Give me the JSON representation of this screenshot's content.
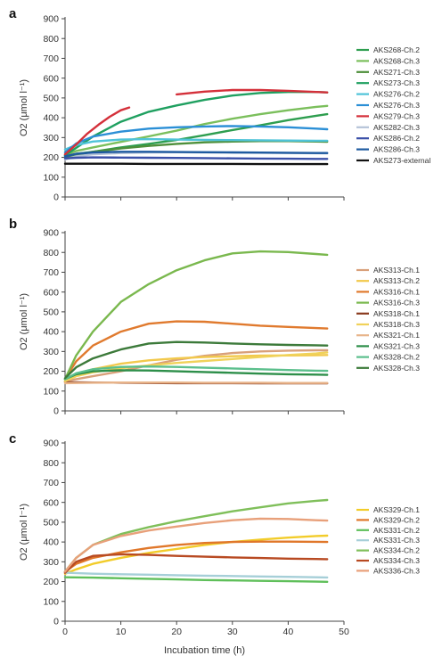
{
  "chart_data": [
    {
      "type": "line",
      "panel_label": "a",
      "ylabel": "O2 (μmol l⁻¹)",
      "xlabel": "",
      "xlim": [
        0,
        50
      ],
      "ylim": [
        0,
        900
      ],
      "yticks": [
        0,
        100,
        200,
        300,
        400,
        500,
        600,
        700,
        800,
        900
      ],
      "xticks": [],
      "legend_position": "right",
      "grid": false,
      "series": [
        {
          "name": "AKS268-Ch.2",
          "color": "#2e9e4f",
          "x": [
            0,
            2,
            5,
            10,
            15,
            20,
            25,
            30,
            35,
            40,
            45,
            47
          ],
          "y": [
            200,
            218,
            228,
            250,
            268,
            288,
            312,
            338,
            362,
            388,
            410,
            418
          ]
        },
        {
          "name": "AKS268-Ch.3",
          "color": "#7bbf5c",
          "x": [
            0,
            2,
            5,
            10,
            15,
            20,
            25,
            30,
            35,
            40,
            45,
            47
          ],
          "y": [
            210,
            232,
            250,
            278,
            306,
            335,
            368,
            395,
            418,
            438,
            455,
            460
          ]
        },
        {
          "name": "AKS271-Ch.3",
          "color": "#4e8f3a",
          "x": [
            0,
            2,
            5,
            10,
            15,
            20,
            25,
            30,
            35,
            40,
            45,
            47
          ],
          "y": [
            200,
            212,
            228,
            245,
            258,
            268,
            276,
            280,
            282,
            282,
            280,
            279
          ]
        },
        {
          "name": "AKS273-Ch.3",
          "color": "#1fa060",
          "x": [
            0,
            2,
            5,
            10,
            15,
            20,
            25,
            30,
            35,
            40,
            45,
            47
          ],
          "y": [
            210,
            248,
            305,
            380,
            430,
            462,
            490,
            512,
            525,
            530,
            530,
            528
          ]
        },
        {
          "name": "AKS276-Ch.2",
          "color": "#4fc3d8",
          "x": [
            0,
            2,
            5,
            10,
            15,
            20,
            25,
            30,
            35,
            40,
            45,
            47
          ],
          "y": [
            240,
            262,
            280,
            290,
            292,
            290,
            288,
            287,
            286,
            285,
            284,
            284
          ]
        },
        {
          "name": "AKS276-Ch.3",
          "color": "#2b8fd6",
          "x": [
            0,
            2,
            5,
            10,
            15,
            20,
            25,
            30,
            35,
            40,
            45,
            47
          ],
          "y": [
            225,
            270,
            305,
            330,
            345,
            352,
            356,
            358,
            356,
            352,
            345,
            342
          ]
        },
        {
          "name": "AKS279-Ch.3",
          "color": "#d4303a",
          "x": [
            0,
            2,
            4,
            6,
            8,
            10,
            11.5,
            20,
            25,
            30,
            35,
            40,
            45,
            47
          ],
          "y": [
            215,
            265,
            320,
            365,
            405,
            438,
            452,
            518,
            532,
            540,
            540,
            536,
            530,
            528
          ]
        },
        {
          "name": "AKS282-Ch.3",
          "color": "#b5c3d8",
          "x": [
            0,
            2,
            5,
            10,
            15,
            20,
            25,
            30,
            35,
            40,
            45,
            47
          ],
          "y": [
            190,
            205,
            215,
            222,
            225,
            226,
            225,
            224,
            223,
            222,
            221,
            220
          ]
        },
        {
          "name": "AKS286-Ch.2",
          "color": "#3a4fa8",
          "x": [
            0,
            2,
            5,
            10,
            15,
            20,
            25,
            30,
            35,
            40,
            45,
            47
          ],
          "y": [
            195,
            198,
            200,
            199,
            198,
            197,
            196,
            195,
            194,
            193,
            192,
            192
          ]
        },
        {
          "name": "AKS286-Ch.3",
          "color": "#1e5aa0",
          "x": [
            0,
            2,
            5,
            10,
            15,
            20,
            25,
            30,
            35,
            40,
            45,
            47
          ],
          "y": [
            205,
            218,
            225,
            228,
            228,
            227,
            226,
            225,
            224,
            223,
            222,
            222
          ]
        },
        {
          "name": "AKS273-external",
          "color": "#111111",
          "x": [
            0,
            5,
            10,
            15,
            20,
            25,
            30,
            35,
            40,
            45,
            47
          ],
          "y": [
            168,
            168,
            168,
            167,
            167,
            167,
            167,
            166,
            166,
            166,
            166
          ]
        }
      ]
    },
    {
      "type": "line",
      "panel_label": "b",
      "ylabel": "O2 (μmol l⁻¹)",
      "xlabel": "",
      "xlim": [
        0,
        50
      ],
      "ylim": [
        0,
        900
      ],
      "yticks": [
        0,
        100,
        200,
        300,
        400,
        500,
        600,
        700,
        800,
        900
      ],
      "xticks": [],
      "legend_position": "right",
      "grid": false,
      "series": [
        {
          "name": "AKS313-Ch.1",
          "color": "#d9a07a",
          "x": [
            0,
            2,
            5,
            10,
            15,
            20,
            25,
            30,
            35,
            40,
            45,
            47
          ],
          "y": [
            150,
            160,
            175,
            200,
            230,
            258,
            278,
            292,
            300,
            304,
            306,
            306
          ]
        },
        {
          "name": "AKS313-Ch.2",
          "color": "#f2c94c",
          "x": [
            0,
            2,
            5,
            10,
            15,
            20,
            25,
            30,
            35,
            40,
            45,
            47
          ],
          "y": [
            150,
            180,
            210,
            238,
            255,
            265,
            272,
            276,
            279,
            280,
            281,
            282
          ]
        },
        {
          "name": "AKS316-Ch.1",
          "color": "#e07a2e",
          "x": [
            0,
            2,
            5,
            10,
            15,
            20,
            25,
            30,
            35,
            40,
            45,
            47
          ],
          "y": [
            160,
            250,
            330,
            400,
            440,
            452,
            450,
            440,
            430,
            424,
            418,
            416
          ]
        },
        {
          "name": "AKS316-Ch.3",
          "color": "#7ab84e",
          "x": [
            0,
            2,
            5,
            10,
            15,
            20,
            25,
            30,
            35,
            40,
            45,
            47
          ],
          "y": [
            160,
            280,
            400,
            550,
            640,
            710,
            760,
            795,
            805,
            802,
            792,
            788
          ]
        },
        {
          "name": "AKS318-Ch.1",
          "color": "#8a3a1e",
          "x": [
            0,
            5,
            10,
            15,
            20,
            25,
            30,
            35,
            40,
            45,
            47
          ],
          "y": [
            145,
            143,
            142,
            141,
            140,
            140,
            140,
            139,
            139,
            139,
            139
          ]
        },
        {
          "name": "AKS318-Ch.3",
          "color": "#f0d25a",
          "x": [
            0,
            2,
            5,
            10,
            15,
            20,
            25,
            30,
            35,
            40,
            45,
            47
          ],
          "y": [
            150,
            175,
            195,
            215,
            230,
            242,
            252,
            262,
            272,
            282,
            290,
            295
          ]
        },
        {
          "name": "AKS321-Ch.1",
          "color": "#e8b48a",
          "x": [
            0,
            5,
            10,
            15,
            20,
            25,
            30,
            35,
            40,
            45,
            47
          ],
          "y": [
            140,
            142,
            143,
            143,
            143,
            142,
            142,
            142,
            141,
            141,
            141
          ]
        },
        {
          "name": "AKS321-Ch.3",
          "color": "#2e8f4a",
          "x": [
            0,
            2,
            5,
            10,
            15,
            20,
            25,
            30,
            35,
            40,
            45,
            47
          ],
          "y": [
            160,
            185,
            200,
            205,
            204,
            200,
            196,
            192,
            188,
            185,
            183,
            182
          ]
        },
        {
          "name": "AKS328-Ch.2",
          "color": "#5bbf8c",
          "x": [
            0,
            2,
            5,
            10,
            15,
            20,
            25,
            30,
            35,
            40,
            45,
            47
          ],
          "y": [
            160,
            190,
            210,
            222,
            224,
            222,
            218,
            214,
            210,
            206,
            203,
            202
          ]
        },
        {
          "name": "AKS328-Ch.3",
          "color": "#3c7a3a",
          "x": [
            0,
            2,
            5,
            10,
            15,
            20,
            25,
            30,
            35,
            40,
            45,
            47
          ],
          "y": [
            165,
            220,
            265,
            310,
            340,
            348,
            345,
            340,
            336,
            333,
            331,
            330
          ]
        }
      ]
    },
    {
      "type": "line",
      "panel_label": "c",
      "ylabel": "O2 (μmol l⁻¹)",
      "xlabel": "Incubation time (h)",
      "xlim": [
        0,
        50
      ],
      "ylim": [
        0,
        900
      ],
      "yticks": [
        0,
        100,
        200,
        300,
        400,
        500,
        600,
        700,
        800,
        900
      ],
      "xticks": [
        0,
        10,
        20,
        30,
        40,
        50
      ],
      "legend_position": "right",
      "grid": false,
      "series": [
        {
          "name": "AKS329-Ch.1",
          "color": "#f2cc2a",
          "x": [
            0,
            2,
            5,
            10,
            15,
            20,
            25,
            30,
            35,
            40,
            45,
            47
          ],
          "y": [
            240,
            262,
            290,
            320,
            345,
            365,
            385,
            400,
            412,
            422,
            430,
            432
          ]
        },
        {
          "name": "AKS329-Ch.2",
          "color": "#e0772a",
          "x": [
            0,
            2,
            5,
            10,
            15,
            20,
            25,
            30,
            35,
            40,
            45,
            47
          ],
          "y": [
            250,
            290,
            320,
            348,
            370,
            385,
            395,
            400,
            402,
            402,
            401,
            400
          ]
        },
        {
          "name": "AKS331-Ch.2",
          "color": "#5fbf5a",
          "x": [
            0,
            5,
            10,
            15,
            20,
            25,
            30,
            35,
            40,
            45,
            47
          ],
          "y": [
            222,
            220,
            217,
            214,
            211,
            208,
            206,
            204,
            202,
            200,
            199
          ]
        },
        {
          "name": "AKS331-Ch.3",
          "color": "#a6cfd8",
          "x": [
            0,
            5,
            10,
            15,
            20,
            25,
            30,
            35,
            40,
            45,
            47
          ],
          "y": [
            245,
            240,
            237,
            235,
            232,
            230,
            228,
            226,
            224,
            222,
            221
          ]
        },
        {
          "name": "AKS334-Ch.2",
          "color": "#7fbf5a",
          "x": [
            0,
            2,
            5,
            10,
            15,
            20,
            25,
            30,
            35,
            40,
            45,
            47
          ],
          "y": [
            250,
            320,
            385,
            440,
            475,
            505,
            530,
            555,
            575,
            595,
            608,
            612
          ]
        },
        {
          "name": "AKS334-Ch.3",
          "color": "#b84a22",
          "x": [
            0,
            2,
            5,
            10,
            15,
            20,
            25,
            30,
            35,
            40,
            45,
            47
          ],
          "y": [
            245,
            300,
            330,
            338,
            335,
            330,
            326,
            322,
            319,
            316,
            314,
            313
          ]
        },
        {
          "name": "AKS336-Ch.3",
          "color": "#e8a07a",
          "x": [
            0,
            2,
            5,
            10,
            15,
            20,
            25,
            30,
            35,
            40,
            45,
            47
          ],
          "y": [
            250,
            320,
            385,
            430,
            458,
            478,
            496,
            510,
            518,
            516,
            510,
            508
          ]
        }
      ]
    }
  ]
}
